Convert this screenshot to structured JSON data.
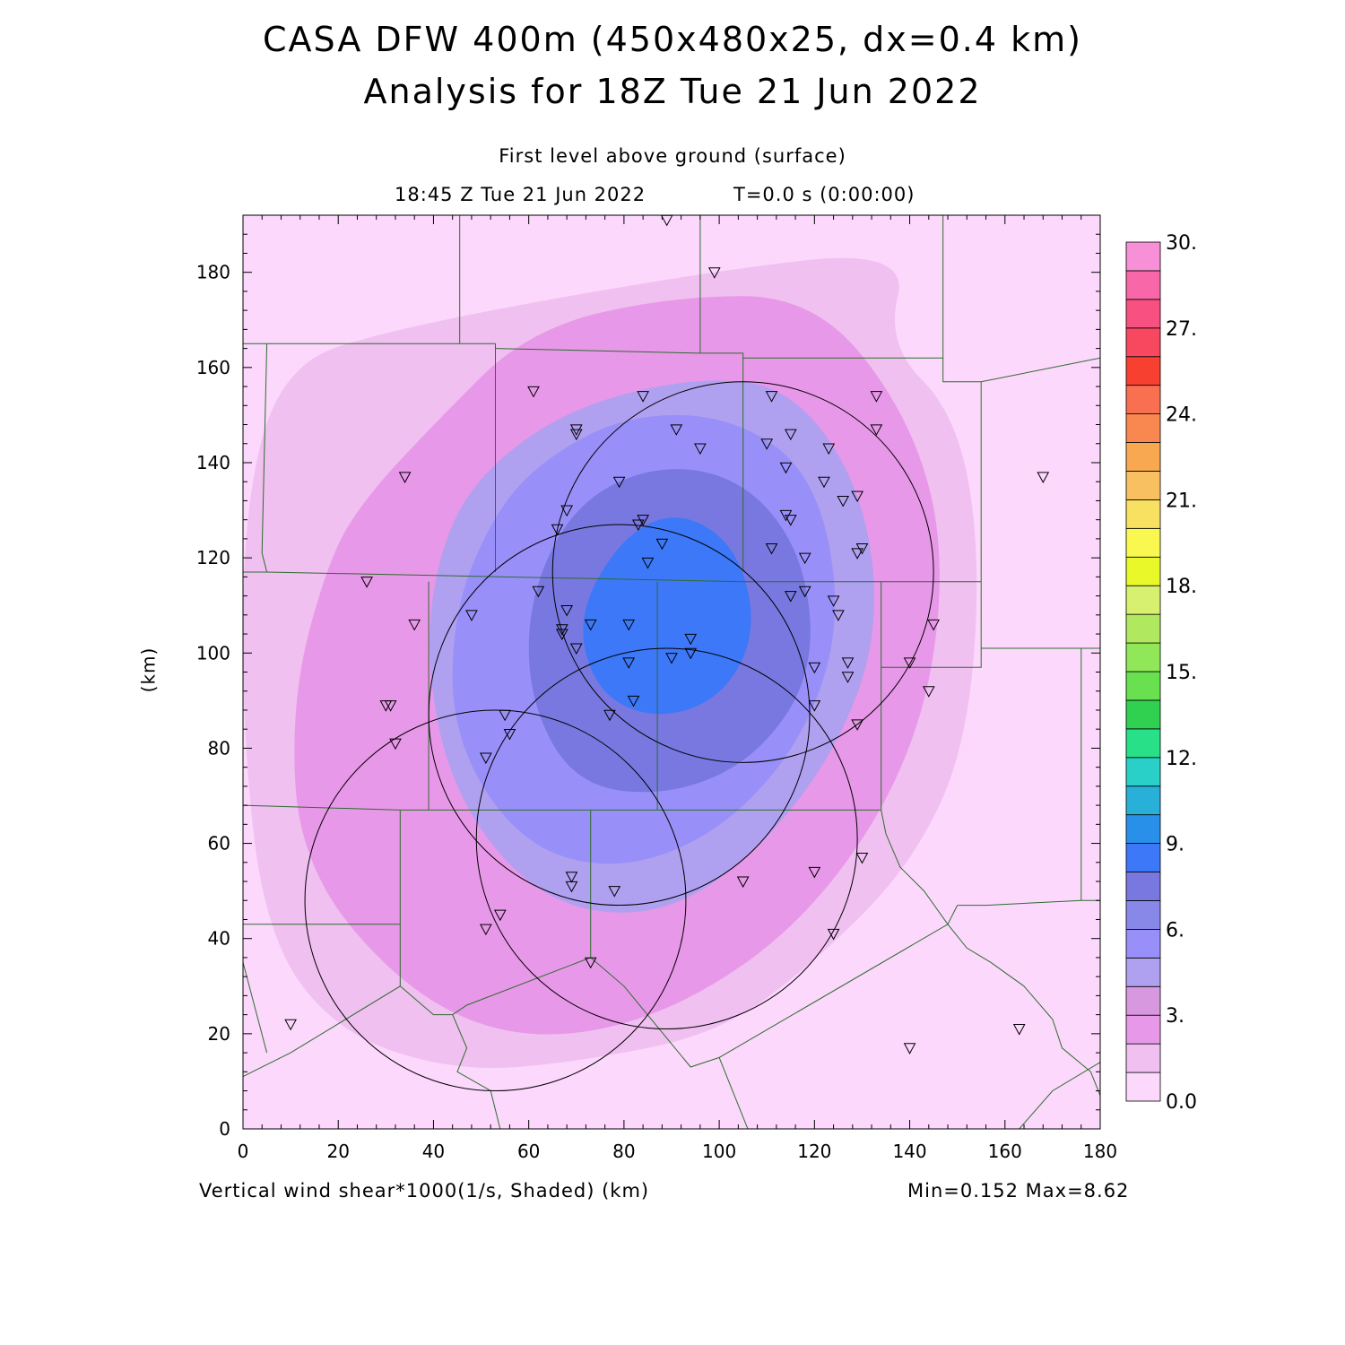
{
  "header": {
    "title_line1": "CASA DFW 400m (450x480x25, dx=0.4 km)",
    "title_line2": "Analysis for 18Z Tue 21 Jun 2022",
    "level": "First level above ground (surface)",
    "valid_time": "18:45 Z Tue 21 Jun 2022",
    "model_time": "T=0.0 s (0:00:00)"
  },
  "footer": {
    "field_label": "Vertical wind shear*1000(1/s, Shaded)  (km)",
    "stats": "Min=0.152 Max=8.62"
  },
  "chart_data": {
    "type": "heatmap",
    "field": "Vertical wind shear*1000",
    "units": "1/s",
    "xlabel": "",
    "ylabel": "(km)",
    "xlim": [
      0,
      180
    ],
    "ylim": [
      0,
      192
    ],
    "x_ticks": [
      0,
      20,
      40,
      60,
      80,
      100,
      120,
      140,
      160,
      180
    ],
    "y_ticks": [
      0,
      20,
      40,
      60,
      80,
      100,
      120,
      140,
      160,
      180
    ],
    "x_tick_labels": [
      "0",
      "20",
      "40",
      "60",
      "80",
      "100",
      "120",
      "140",
      "160",
      "180"
    ],
    "y_tick_labels": [
      "0",
      "20",
      "40",
      "60",
      "80",
      "100",
      "120",
      "140",
      "160",
      "180"
    ],
    "min": 0.152,
    "max": 8.62,
    "colorbar": {
      "min": 0,
      "max": 30,
      "step": 1.5,
      "labels": [
        "0.0",
        "3.",
        "6.",
        "9.",
        "12.",
        "15.",
        "18.",
        "21.",
        "24.",
        "27.",
        "30."
      ],
      "colors": [
        "#fcd8fc",
        "#f0c0f0",
        "#e898e8",
        "#d898e0",
        "#b0a0f0",
        "#9890f8",
        "#8888e8",
        "#7878e0",
        "#3c78f8",
        "#2890e8",
        "#28b0d8",
        "#28d0c8",
        "#28e088",
        "#30d050",
        "#68e050",
        "#90e858",
        "#b0e860",
        "#d8f070",
        "#e8f828",
        "#f8f850",
        "#f8e060",
        "#f8c060",
        "#f8a850",
        "#f88850",
        "#f87050",
        "#f84030",
        "#f84860",
        "#f85080",
        "#f868a8",
        "#f890d8"
      ]
    },
    "contour_levels": [
      {
        "value": 0.0,
        "color": "#fcd8fc"
      },
      {
        "value": 1.5,
        "color": "#f0c0f0"
      },
      {
        "value": 3.0,
        "color": "#e898e8"
      },
      {
        "value": 4.5,
        "color": "#b0a0f0"
      },
      {
        "value": 6.0,
        "color": "#9890f8"
      },
      {
        "value": 7.5,
        "color": "#7878e0"
      },
      {
        "value": 9.0,
        "color": "#3c78f8"
      }
    ],
    "radar_rings": [
      {
        "center": [
          105,
          117
        ],
        "radius": 40
      },
      {
        "center": [
          79,
          87
        ],
        "radius": 40
      },
      {
        "center": [
          89,
          61
        ],
        "radius": 40
      },
      {
        "center": [
          53,
          48
        ],
        "radius": 40
      }
    ],
    "stations": [
      [
        89,
        191
      ],
      [
        99,
        180
      ],
      [
        61,
        155
      ],
      [
        84,
        154
      ],
      [
        111,
        154
      ],
      [
        133,
        154
      ],
      [
        91,
        147
      ],
      [
        70,
        147
      ],
      [
        70,
        146
      ],
      [
        133,
        147
      ],
      [
        115,
        146
      ],
      [
        96,
        143
      ],
      [
        110,
        144
      ],
      [
        123,
        143
      ],
      [
        34,
        137
      ],
      [
        79,
        136
      ],
      [
        168,
        137
      ],
      [
        114,
        139
      ],
      [
        122,
        136
      ],
      [
        129,
        133
      ],
      [
        126,
        132
      ],
      [
        68,
        130
      ],
      [
        114,
        129
      ],
      [
        115,
        128
      ],
      [
        84,
        128
      ],
      [
        83,
        127
      ],
      [
        66,
        126
      ],
      [
        88,
        123
      ],
      [
        111,
        122
      ],
      [
        130,
        122
      ],
      [
        129,
        121
      ],
      [
        118,
        120
      ],
      [
        85,
        119
      ],
      [
        26,
        115
      ],
      [
        62,
        113
      ],
      [
        115,
        112
      ],
      [
        118,
        113
      ],
      [
        68,
        109
      ],
      [
        124,
        111
      ],
      [
        125,
        108
      ],
      [
        48,
        108
      ],
      [
        36,
        106
      ],
      [
        73,
        106
      ],
      [
        81,
        106
      ],
      [
        145,
        106
      ],
      [
        67,
        105
      ],
      [
        67,
        104
      ],
      [
        94,
        103
      ],
      [
        70,
        101
      ],
      [
        94,
        100
      ],
      [
        90,
        99
      ],
      [
        81,
        98
      ],
      [
        120,
        97
      ],
      [
        127,
        98
      ],
      [
        140,
        98
      ],
      [
        127,
        95
      ],
      [
        144,
        92
      ],
      [
        30,
        89
      ],
      [
        31,
        89
      ],
      [
        82,
        90
      ],
      [
        120,
        89
      ],
      [
        77,
        87
      ],
      [
        55,
        87
      ],
      [
        129,
        85
      ],
      [
        56,
        83
      ],
      [
        32,
        81
      ],
      [
        51,
        78
      ],
      [
        130,
        57
      ],
      [
        120,
        54
      ],
      [
        69,
        53
      ],
      [
        69,
        51
      ],
      [
        78,
        50
      ],
      [
        105,
        52
      ],
      [
        54,
        45
      ],
      [
        51,
        42
      ],
      [
        124,
        41
      ],
      [
        73,
        35
      ],
      [
        10,
        22
      ],
      [
        163,
        21
      ],
      [
        140,
        17
      ]
    ],
    "boundaries": [
      [
        [
          0,
          165
        ],
        [
          53,
          165
        ]
      ],
      [
        [
          45.5,
          192
        ],
        [
          45.5,
          165
        ]
      ],
      [
        [
          53,
          165
        ],
        [
          53,
          117
        ]
      ],
      [
        [
          53,
          164
        ],
        [
          96,
          163
        ]
      ],
      [
        [
          96,
          192
        ],
        [
          96,
          163
        ]
      ],
      [
        [
          96,
          163
        ],
        [
          105,
          163
        ],
        [
          105,
          162
        ],
        [
          147,
          162
        ],
        [
          147,
          192
        ]
      ],
      [
        [
          105,
          162
        ],
        [
          105,
          117
        ]
      ],
      [
        [
          147,
          162
        ],
        [
          147,
          157
        ],
        [
          155,
          157
        ],
        [
          180,
          162
        ]
      ],
      [
        [
          155,
          157
        ],
        [
          155,
          115
        ],
        [
          155,
          101
        ],
        [
          180,
          101
        ]
      ],
      [
        [
          5,
          165
        ],
        [
          4,
          121
        ],
        [
          5,
          117
        ],
        [
          0,
          117
        ]
      ],
      [
        [
          5,
          117
        ],
        [
          105,
          115
        ],
        [
          155,
          115
        ]
      ],
      [
        [
          39,
          115
        ],
        [
          39,
          67
        ]
      ],
      [
        [
          87,
          115
        ],
        [
          87,
          67
        ]
      ],
      [
        [
          134,
          115
        ],
        [
          134,
          97
        ],
        [
          155,
          97
        ],
        [
          155,
          101
        ]
      ],
      [
        [
          0,
          68
        ],
        [
          33,
          67
        ],
        [
          87,
          67
        ],
        [
          134,
          67
        ],
        [
          134,
          97
        ]
      ],
      [
        [
          33,
          67
        ],
        [
          33,
          30
        ]
      ],
      [
        [
          0,
          43
        ],
        [
          33,
          43
        ]
      ],
      [
        [
          0,
          11
        ],
        [
          10,
          16
        ],
        [
          33,
          30
        ],
        [
          40,
          24
        ],
        [
          44,
          24
        ],
        [
          47,
          26
        ],
        [
          73,
          36
        ]
      ],
      [
        [
          73,
          67
        ],
        [
          73,
          36
        ],
        [
          80,
          30
        ],
        [
          94,
          13
        ],
        [
          100,
          15
        ],
        [
          148,
          43
        ],
        [
          150,
          47
        ]
      ],
      [
        [
          134,
          67
        ],
        [
          135,
          62
        ],
        [
          138,
          55
        ],
        [
          143,
          50
        ],
        [
          148,
          43
        ],
        [
          152,
          38
        ],
        [
          157,
          35
        ],
        [
          164,
          30
        ],
        [
          170,
          23
        ],
        [
          172,
          17
        ],
        [
          178,
          12
        ],
        [
          180,
          7
        ]
      ],
      [
        [
          150,
          47
        ],
        [
          156,
          47
        ],
        [
          176,
          48
        ],
        [
          180,
          48
        ]
      ],
      [
        [
          176,
          101
        ],
        [
          176,
          48
        ]
      ],
      [
        [
          100,
          15
        ],
        [
          106,
          0
        ]
      ],
      [
        [
          163,
          0
        ],
        [
          170,
          8
        ],
        [
          180,
          14
        ]
      ],
      [
        [
          0,
          35
        ],
        [
          5,
          16
        ]
      ],
      [
        [
          44,
          24
        ],
        [
          47,
          17
        ],
        [
          45,
          12
        ],
        [
          52,
          8
        ],
        [
          54,
          0
        ]
      ]
    ]
  }
}
